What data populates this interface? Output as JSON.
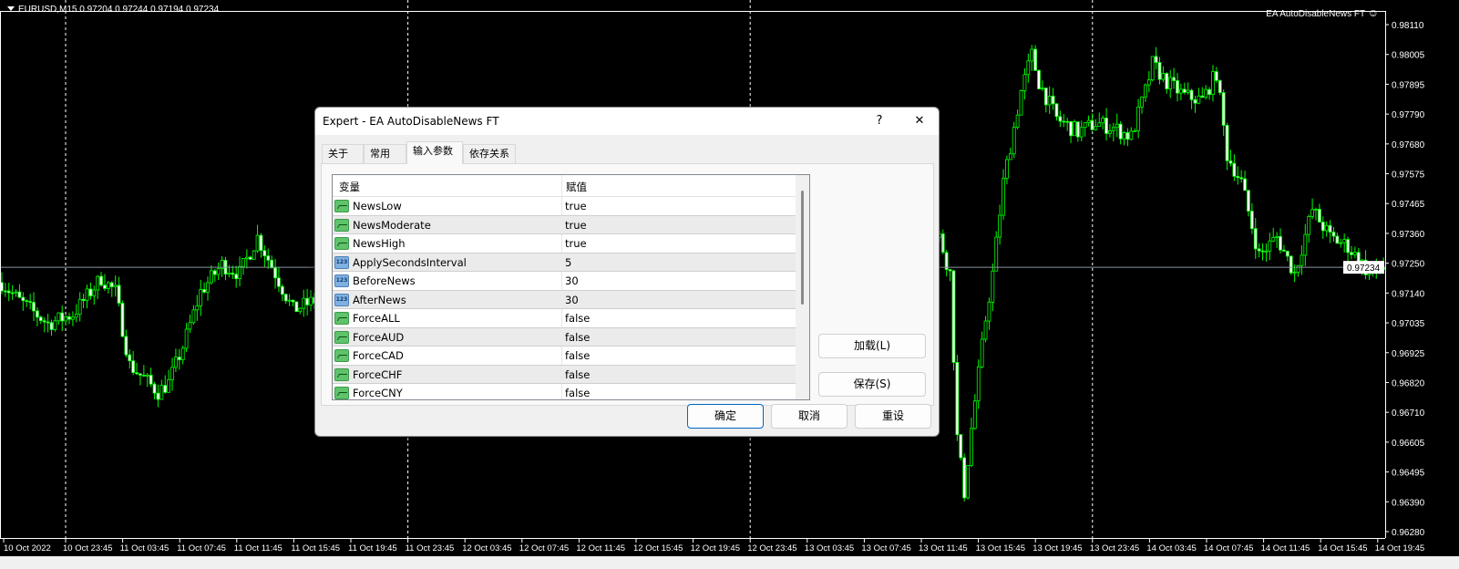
{
  "chart": {
    "symbol_header": "EURUSD,M15  0.97204 0.97244 0.97194 0.97234",
    "ea_label": "EA AutoDisableNews FT",
    "ea_icon": "smiley-icon",
    "colors": {
      "background": "#000000",
      "candle": "#00ff00",
      "bear_body": "#ffffff",
      "grid": "#ffffff",
      "bid_line": "#8a95a0"
    },
    "current_price": "0.97234"
  },
  "chart_data": {
    "type": "candlestick",
    "ylim": [
      0.9628,
      0.9811
    ],
    "price_labels": [
      "0.98110",
      "0.98005",
      "0.97895",
      "0.97790",
      "0.97680",
      "0.97575",
      "0.97465",
      "0.97360",
      "0.97250",
      "0.97140",
      "0.97035",
      "0.96925",
      "0.96820",
      "0.96710",
      "0.96605",
      "0.96495",
      "0.96390",
      "0.96280"
    ],
    "time_labels": [
      "10 Oct 2022",
      "10 Oct 23:45",
      "11 Oct 03:45",
      "11 Oct 07:45",
      "11 Oct 11:45",
      "11 Oct 15:45",
      "11 Oct 19:45",
      "11 Oct 23:45",
      "12 Oct 03:45",
      "12 Oct 07:45",
      "12 Oct 11:45",
      "12 Oct 15:45",
      "12 Oct 19:45",
      "12 Oct 23:45",
      "13 Oct 03:45",
      "13 Oct 07:45",
      "13 Oct 11:45",
      "13 Oct 15:45",
      "13 Oct 19:45",
      "13 Oct 23:45",
      "14 Oct 03:45",
      "14 Oct 07:45",
      "14 Oct 11:45",
      "14 Oct 15:45",
      "14 Oct 19:45"
    ],
    "approx_close_path": [
      [
        0,
        0.97179
      ],
      [
        5,
        0.97113
      ],
      [
        13,
        0.97031
      ],
      [
        20,
        0.97064
      ],
      [
        28,
        0.97195
      ],
      [
        32,
        0.97146
      ],
      [
        36,
        0.96882
      ],
      [
        44,
        0.96784
      ],
      [
        47,
        0.96817
      ],
      [
        51,
        0.96948
      ],
      [
        56,
        0.97146
      ],
      [
        62,
        0.97244
      ],
      [
        67,
        0.97212
      ],
      [
        72,
        0.97343
      ],
      [
        77,
        0.97212
      ],
      [
        82,
        0.9708
      ],
      [
        88,
        0.97113
      ],
      [
        120,
        0.97212
      ],
      [
        160,
        0.97146
      ],
      [
        200,
        0.97277
      ],
      [
        240,
        0.97212
      ],
      [
        264,
        0.97343
      ],
      [
        267,
        0.97212
      ],
      [
        269,
        0.96619
      ],
      [
        271,
        0.96422
      ],
      [
        273,
        0.96652
      ],
      [
        277,
        0.97047
      ],
      [
        279,
        0.97212
      ],
      [
        282,
        0.97541
      ],
      [
        287,
        0.9787
      ],
      [
        290,
        0.98001
      ],
      [
        292,
        0.97903
      ],
      [
        297,
        0.97771
      ],
      [
        303,
        0.97722
      ],
      [
        308,
        0.97755
      ],
      [
        313,
        0.97738
      ],
      [
        318,
        0.97705
      ],
      [
        322,
        0.9787
      ],
      [
        324,
        0.97968
      ],
      [
        328,
        0.97903
      ],
      [
        333,
        0.97853
      ],
      [
        338,
        0.97837
      ],
      [
        342,
        0.97936
      ],
      [
        345,
        0.97639
      ],
      [
        349,
        0.97541
      ],
      [
        354,
        0.97277
      ],
      [
        359,
        0.97343
      ],
      [
        364,
        0.97212
      ],
      [
        369,
        0.97442
      ],
      [
        374,
        0.97343
      ],
      [
        379,
        0.9731
      ],
      [
        385,
        0.97212
      ],
      [
        389,
        0.97234
      ]
    ]
  },
  "dialog": {
    "title": "Expert - EA AutoDisableNews FT",
    "help_label": "?",
    "close_label": "✕",
    "tabs": [
      {
        "label": "关于"
      },
      {
        "label": "常用"
      },
      {
        "label": "输入参数",
        "active": true
      },
      {
        "label": "依存关系"
      }
    ],
    "columns": {
      "variable": "变量",
      "value": "赋值"
    },
    "params": [
      {
        "name": "NewsLow",
        "value": "true",
        "type": "bool"
      },
      {
        "name": "NewsModerate",
        "value": "true",
        "type": "bool"
      },
      {
        "name": "NewsHigh",
        "value": "true",
        "type": "bool"
      },
      {
        "name": "ApplySecondsInterval",
        "value": "5",
        "type": "int"
      },
      {
        "name": "BeforeNews",
        "value": "30",
        "type": "int"
      },
      {
        "name": "AfterNews",
        "value": "30",
        "type": "int"
      },
      {
        "name": "ForceALL",
        "value": "false",
        "type": "bool"
      },
      {
        "name": "ForceAUD",
        "value": "false",
        "type": "bool"
      },
      {
        "name": "ForceCAD",
        "value": "false",
        "type": "bool"
      },
      {
        "name": "ForceCHF",
        "value": "false",
        "type": "bool"
      },
      {
        "name": "ForceCNY",
        "value": "false",
        "type": "bool"
      }
    ],
    "int_icon_text": "123",
    "buttons": {
      "load": "加载(L)",
      "save": "保存(S)",
      "ok": "确定",
      "cancel": "取消",
      "reset": "重设"
    }
  }
}
